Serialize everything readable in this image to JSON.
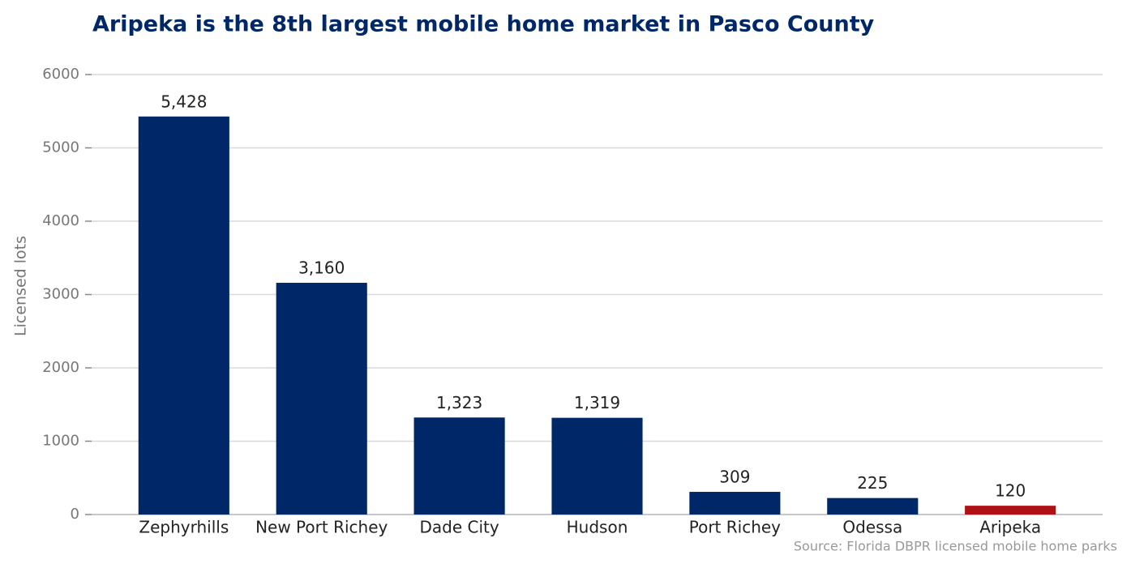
{
  "chart_data": {
    "type": "bar",
    "title": "Aripeka is the 8th largest mobile home market in Pasco County",
    "ylabel": "Licensed lots",
    "source": "Source: Florida DBPR licensed mobile home parks",
    "categories": [
      "Zephyrhills",
      "New Port Richey",
      "Dade City",
      "Hudson",
      "Port Richey",
      "Odessa",
      "Aripeka"
    ],
    "values": [
      5428,
      3160,
      1323,
      1319,
      309,
      225,
      120
    ],
    "value_labels": [
      "5,428",
      "3,160",
      "1,323",
      "1,319",
      "309",
      "225",
      "120"
    ],
    "colors": [
      "#002868",
      "#002868",
      "#002868",
      "#002868",
      "#002868",
      "#002868",
      "#b01116"
    ],
    "ylim": [
      0,
      6000
    ],
    "yticks": [
      0,
      1000,
      2000,
      3000,
      4000,
      5000,
      6000
    ],
    "grid": true
  }
}
